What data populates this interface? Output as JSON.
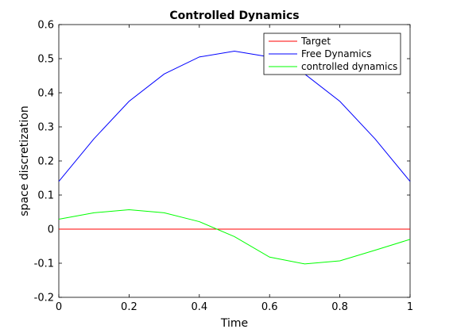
{
  "chart_data": {
    "type": "line",
    "title": "Controlled Dynamics",
    "xlabel": "Time",
    "ylabel": "space discretization",
    "xlim": [
      0,
      1
    ],
    "ylim": [
      -0.2,
      0.6
    ],
    "xticks": [
      "0",
      "0.2",
      "0.4",
      "0.6",
      "0.8",
      "1"
    ],
    "yticks": [
      "-0.2",
      "-0.1",
      "0",
      "0.1",
      "0.2",
      "0.3",
      "0.4",
      "0.5",
      "0.6"
    ],
    "grid": false,
    "legend_position": "top-right",
    "x": [
      0,
      0.1,
      0.2,
      0.3,
      0.4,
      0.5,
      0.6,
      0.7,
      0.8,
      0.9,
      1.0
    ],
    "series": [
      {
        "name": "Target",
        "color": "#ff0000",
        "values": [
          0,
          0,
          0,
          0,
          0,
          0,
          0,
          0,
          0,
          0,
          0
        ]
      },
      {
        "name": "Free Dynamics",
        "color": "#0000ff",
        "values": [
          0.14,
          0.265,
          0.375,
          0.455,
          0.505,
          0.522,
          0.505,
          0.455,
          0.375,
          0.265,
          0.14
        ]
      },
      {
        "name": "controlled dynamics",
        "color": "#00ff00",
        "values": [
          0.029,
          0.048,
          0.057,
          0.048,
          0.022,
          -0.022,
          -0.082,
          -0.102,
          -0.093,
          -0.062,
          -0.03
        ]
      }
    ]
  }
}
